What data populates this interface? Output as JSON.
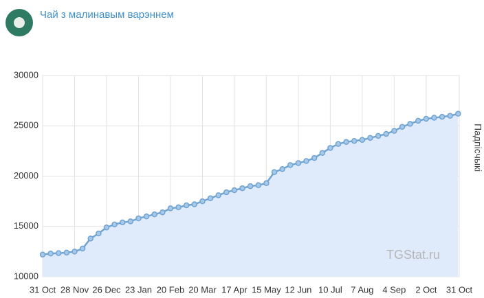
{
  "header": {
    "title": "Чай з малинавым варэннем"
  },
  "chart_data": {
    "type": "line",
    "ylabel": "Падпісчыкі",
    "watermark": "TGStat.ru",
    "x": [
      0,
      7,
      14,
      21,
      28,
      35,
      42,
      49,
      56,
      63,
      70,
      77,
      84,
      91,
      98,
      105,
      112,
      119,
      126,
      133,
      140,
      147,
      154,
      161,
      168,
      175,
      182,
      189,
      196,
      203,
      210,
      217,
      224,
      231,
      238,
      245,
      252,
      259,
      266,
      273,
      280,
      287,
      294,
      301,
      308,
      315,
      322,
      329,
      336,
      343,
      350,
      357,
      364
    ],
    "series": [
      {
        "name": "Падпісчыкі",
        "color": "#6fa3d2",
        "values": [
          12200,
          12300,
          12350,
          12400,
          12500,
          12800,
          13800,
          14300,
          14900,
          15200,
          15400,
          15500,
          15800,
          16000,
          16200,
          16400,
          16800,
          16900,
          17100,
          17200,
          17500,
          17800,
          18100,
          18400,
          18600,
          18800,
          19000,
          19100,
          19300,
          20400,
          20700,
          21100,
          21300,
          21500,
          21800,
          22300,
          22800,
          23200,
          23400,
          23500,
          23600,
          23800,
          24000,
          24200,
          24500,
          24900,
          25200,
          25500,
          25700,
          25800,
          25900,
          26000,
          26200
        ]
      }
    ],
    "xlim": [
      0,
      365
    ],
    "xticks": [
      {
        "value": 0,
        "label": "31 Oct"
      },
      {
        "value": 28,
        "label": "28 Nov"
      },
      {
        "value": 56,
        "label": "26 Dec"
      },
      {
        "value": 84,
        "label": "23 Jan"
      },
      {
        "value": 112,
        "label": "20 Feb"
      },
      {
        "value": 140,
        "label": "20 Mar"
      },
      {
        "value": 168,
        "label": "17 Apr"
      },
      {
        "value": 196,
        "label": "15 May"
      },
      {
        "value": 224,
        "label": "12 Jun"
      },
      {
        "value": 252,
        "label": "10 Jul"
      },
      {
        "value": 280,
        "label": "7 Aug"
      },
      {
        "value": 308,
        "label": "4 Sep"
      },
      {
        "value": 336,
        "label": "2 Oct"
      },
      {
        "value": 365,
        "label": "31 Oct"
      }
    ],
    "ylim": [
      10000,
      30000
    ],
    "yticks": [
      10000,
      15000,
      20000,
      25000,
      30000
    ],
    "grid": true
  }
}
